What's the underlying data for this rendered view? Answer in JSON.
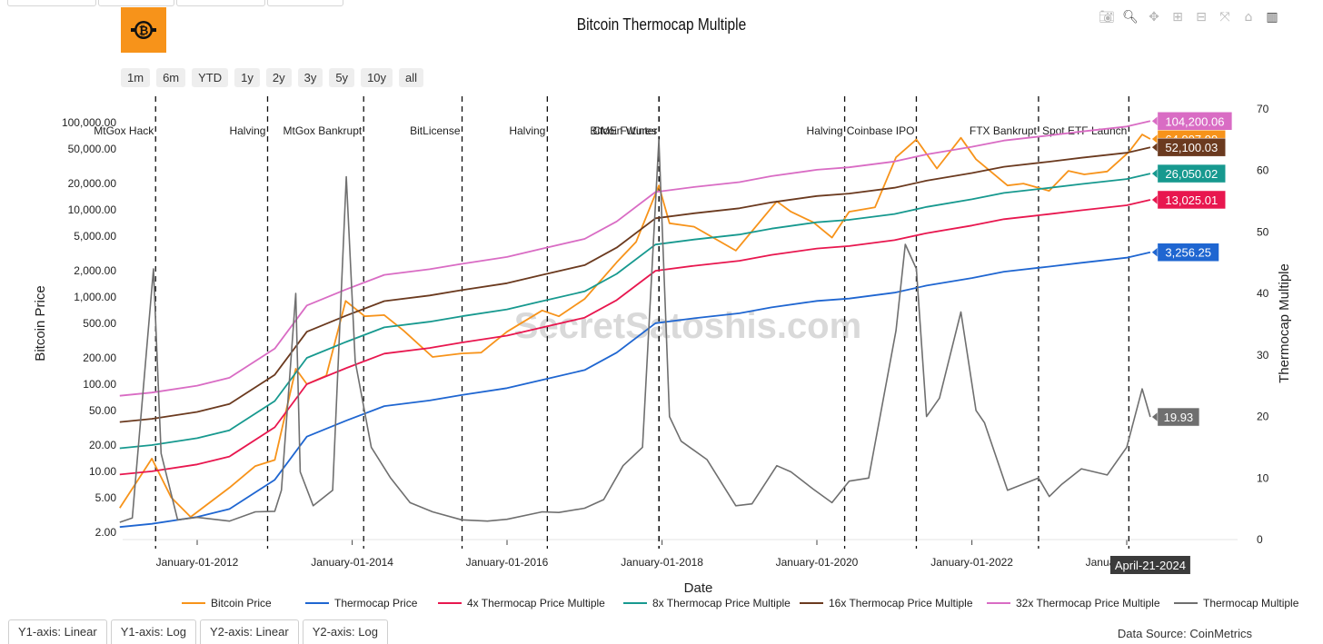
{
  "title": "Bitcoin Thermocap Multiple",
  "range_buttons": [
    "1m",
    "6m",
    "YTD",
    "1y",
    "2y",
    "3y",
    "5y",
    "10y",
    "all"
  ],
  "bottom_buttons": [
    "Y1-axis: Linear",
    "Y1-axis: Log",
    "Y2-axis: Linear",
    "Y2-axis: Log"
  ],
  "data_source": "Data Source: CoinMetrics",
  "modebar_icons": [
    "camera-icon",
    "zoom-icon",
    "pan-icon",
    "zoom-in-icon",
    "zoom-out-icon",
    "autoscale-icon",
    "reset-home-icon",
    "chart-logo-icon"
  ],
  "watermark": "SecretSatoshis.com",
  "chart_data": {
    "type": "line",
    "xlabel": "Date",
    "ylabel": "Bitcoin Price",
    "y2label": "Thermocap Multiple",
    "y_scale": "log",
    "y2_scale": "linear",
    "y2lim": [
      0,
      70
    ],
    "x_ticks": [
      "January-01-2012",
      "January-01-2014",
      "January-01-2016",
      "January-01-2018",
      "January-01-2020",
      "January-01-2022",
      "January-01-2024"
    ],
    "y_ticks": [
      "2.00",
      "5.00",
      "10.00",
      "20.00",
      "50.00",
      "100.00",
      "200.00",
      "500.00",
      "1,000.00",
      "2,000.00",
      "5,000.00",
      "10,000.00",
      "20,000.00",
      "50,000.00",
      "100,000.00"
    ],
    "y2_ticks": [
      "0",
      "10",
      "20",
      "30",
      "40",
      "50",
      "60",
      "70"
    ],
    "hover_date": "April-21-2024",
    "events": [
      {
        "label": "MtGox Hack",
        "date": "2011-06-19"
      },
      {
        "label": "Halving",
        "date": "2012-11-28"
      },
      {
        "label": "MtGox Bankrupt",
        "date": "2014-02-24"
      },
      {
        "label": "BitLicense",
        "date": "2015-06-03"
      },
      {
        "label": "Halving",
        "date": "2016-07-09"
      },
      {
        "label": "CME Futures",
        "date": "2017-12-17"
      },
      {
        "label": "Bitcoin Winter",
        "date": "2017-12-18"
      },
      {
        "label": "Halving",
        "date": "2020-05-11"
      },
      {
        "label": "Coinbase IPO",
        "date": "2021-04-14"
      },
      {
        "label": "FTX Bankrupt",
        "date": "2022-11-11"
      },
      {
        "label": "Spot ETF Launch",
        "date": "2024-01-11"
      }
    ],
    "series": [
      {
        "name": "Bitcoin Price",
        "color": "#f7931a",
        "axis": "y",
        "last_label": "64,907.99",
        "x": [
          "2011-01-01",
          "2011-06-01",
          "2011-09-01",
          "2011-12-01",
          "2012-06-01",
          "2012-10-01",
          "2013-01-01",
          "2013-04-10",
          "2013-06-01",
          "2013-09-01",
          "2013-12-01",
          "2014-03-01",
          "2014-06-01",
          "2014-09-01",
          "2015-01-15",
          "2015-06-01",
          "2015-09-01",
          "2016-01-01",
          "2016-06-15",
          "2016-09-01",
          "2017-01-01",
          "2017-06-01",
          "2017-09-01",
          "2017-12-17",
          "2018-02-05",
          "2018-06-01",
          "2018-12-15",
          "2019-06-26",
          "2019-09-01",
          "2019-12-15",
          "2020-03-12",
          "2020-06-01",
          "2020-10-01",
          "2021-01-08",
          "2021-04-14",
          "2021-07-20",
          "2021-11-10",
          "2022-01-20",
          "2022-06-18",
          "2022-09-01",
          "2022-12-31",
          "2023-04-01",
          "2023-06-15",
          "2023-10-01",
          "2024-01-11",
          "2024-03-14",
          "2024-04-21"
        ],
        "y": [
          3.8,
          14,
          5,
          3,
          6.5,
          11.5,
          13.5,
          150,
          100,
          125,
          900,
          600,
          620,
          410,
          205,
          225,
          230,
          400,
          700,
          600,
          950,
          2500,
          4300,
          19000,
          7000,
          6400,
          3400,
          12500,
          9500,
          7200,
          4800,
          9500,
          10700,
          40000,
          64000,
          29800,
          67000,
          38000,
          19000,
          20000,
          16500,
          28000,
          25500,
          27500,
          46000,
          73000,
          64907.99
        ]
      },
      {
        "name": "Thermocap Price",
        "color": "#1f66d1",
        "axis": "y",
        "last_label": "3,256.25",
        "x": [
          "2011-01-01",
          "2011-06-01",
          "2012-01-01",
          "2012-06-01",
          "2013-01-01",
          "2013-06-01",
          "2013-12-01",
          "2014-06-01",
          "2015-01-01",
          "2015-06-01",
          "2016-01-01",
          "2016-06-01",
          "2017-01-01",
          "2017-06-01",
          "2017-12-01",
          "2018-06-01",
          "2019-01-01",
          "2019-06-01",
          "2020-01-01",
          "2020-06-01",
          "2021-01-01",
          "2021-06-01",
          "2022-01-01",
          "2022-06-01",
          "2023-01-01",
          "2023-06-01",
          "2024-01-01",
          "2024-04-21"
        ],
        "y": [
          2.3,
          2.5,
          3.0,
          3.7,
          8,
          25,
          38,
          56,
          65,
          75,
          90,
          110,
          145,
          230,
          500,
          570,
          650,
          760,
          900,
          960,
          1120,
          1350,
          1650,
          1950,
          2230,
          2470,
          2820,
          3256.25
        ]
      },
      {
        "name": "4x Thermocap Price Multiple",
        "color": "#e8174f",
        "axis": "y",
        "last_label": "13,025.01",
        "x": [
          "2011-01-01",
          "2011-06-01",
          "2012-01-01",
          "2012-06-01",
          "2013-01-01",
          "2013-06-01",
          "2013-12-01",
          "2014-06-01",
          "2015-01-01",
          "2015-06-01",
          "2016-01-01",
          "2016-06-01",
          "2017-01-01",
          "2017-06-01",
          "2017-12-01",
          "2018-06-01",
          "2019-01-01",
          "2019-06-01",
          "2020-01-01",
          "2020-06-01",
          "2021-01-01",
          "2021-06-01",
          "2022-01-01",
          "2022-06-01",
          "2023-01-01",
          "2023-06-01",
          "2024-01-01",
          "2024-04-21"
        ],
        "y": [
          9.2,
          10,
          12,
          14.8,
          32,
          100,
          152,
          224,
          260,
          300,
          360,
          440,
          580,
          920,
          2000,
          2280,
          2600,
          3040,
          3600,
          3840,
          4480,
          5400,
          6600,
          7800,
          8920,
          9880,
          11280,
          13025.01
        ]
      },
      {
        "name": "8x Thermocap Price Multiple",
        "color": "#17998f",
        "axis": "y",
        "last_label": "26,050.02",
        "x": [
          "2011-01-01",
          "2011-06-01",
          "2012-01-01",
          "2012-06-01",
          "2013-01-01",
          "2013-06-01",
          "2013-12-01",
          "2014-06-01",
          "2015-01-01",
          "2015-06-01",
          "2016-01-01",
          "2016-06-01",
          "2017-01-01",
          "2017-06-01",
          "2017-12-01",
          "2018-06-01",
          "2019-01-01",
          "2019-06-01",
          "2020-01-01",
          "2020-06-01",
          "2021-01-01",
          "2021-06-01",
          "2022-01-01",
          "2022-06-01",
          "2023-01-01",
          "2023-06-01",
          "2024-01-01",
          "2024-04-21"
        ],
        "y": [
          18.4,
          20,
          24,
          29.6,
          64,
          200,
          304,
          448,
          520,
          600,
          720,
          880,
          1160,
          1840,
          4000,
          4560,
          5200,
          6080,
          7200,
          7680,
          8960,
          10800,
          13200,
          15600,
          17840,
          19760,
          22560,
          26050.02
        ]
      },
      {
        "name": "16x Thermocap Price Multiple",
        "color": "#6b3a1f",
        "axis": "y",
        "last_label": "52,100.03",
        "x": [
          "2011-01-01",
          "2011-06-01",
          "2012-01-01",
          "2012-06-01",
          "2013-01-01",
          "2013-06-01",
          "2013-12-01",
          "2014-06-01",
          "2015-01-01",
          "2015-06-01",
          "2016-01-01",
          "2016-06-01",
          "2017-01-01",
          "2017-06-01",
          "2017-12-01",
          "2018-06-01",
          "2019-01-01",
          "2019-06-01",
          "2020-01-01",
          "2020-06-01",
          "2021-01-01",
          "2021-06-01",
          "2022-01-01",
          "2022-06-01",
          "2023-01-01",
          "2023-06-01",
          "2024-01-01",
          "2024-04-21"
        ],
        "y": [
          36.8,
          40,
          48,
          59.2,
          128,
          400,
          608,
          896,
          1040,
          1200,
          1440,
          1760,
          2320,
          3680,
          8000,
          9120,
          10400,
          12160,
          14400,
          15360,
          17920,
          21600,
          26400,
          31200,
          35680,
          39520,
          45120,
          52100.03
        ]
      },
      {
        "name": "32x Thermocap Price Multiple",
        "color": "#d96cc4",
        "axis": "y",
        "last_label": "104,200.06",
        "x": [
          "2011-01-01",
          "2011-06-01",
          "2012-01-01",
          "2012-06-01",
          "2013-01-01",
          "2013-06-01",
          "2013-12-01",
          "2014-06-01",
          "2015-01-01",
          "2015-06-01",
          "2016-01-01",
          "2016-06-01",
          "2017-01-01",
          "2017-06-01",
          "2017-12-01",
          "2018-06-01",
          "2019-01-01",
          "2019-06-01",
          "2020-01-01",
          "2020-06-01",
          "2021-01-01",
          "2021-06-01",
          "2022-01-01",
          "2022-06-01",
          "2023-01-01",
          "2023-06-01",
          "2024-01-01",
          "2024-04-21"
        ],
        "y": [
          73.6,
          80,
          96,
          118.4,
          256,
          800,
          1216,
          1792,
          2080,
          2400,
          2880,
          3520,
          4640,
          7360,
          16000,
          18240,
          20800,
          24320,
          28800,
          30720,
          35840,
          43200,
          52800,
          62400,
          71360,
          79040,
          90240,
          104200.06
        ]
      },
      {
        "name": "Thermocap Multiple",
        "color": "#6f6f6f",
        "axis": "y2",
        "last_label": "19.93",
        "x": [
          "2011-01-01",
          "2011-03-01",
          "2011-06-09",
          "2011-07-15",
          "2011-10-01",
          "2012-01-01",
          "2012-06-01",
          "2012-10-01",
          "2013-01-01",
          "2013-02-01",
          "2013-04-10",
          "2013-05-01",
          "2013-07-01",
          "2013-10-01",
          "2013-12-04",
          "2014-01-15",
          "2014-04-01",
          "2014-07-01",
          "2014-10-01",
          "2015-01-15",
          "2015-06-01",
          "2015-10-01",
          "2016-01-01",
          "2016-06-15",
          "2016-09-01",
          "2017-01-01",
          "2017-04-01",
          "2017-07-01",
          "2017-10-01",
          "2017-12-17",
          "2018-02-05",
          "2018-04-01",
          "2018-08-01",
          "2018-12-15",
          "2019-03-01",
          "2019-06-26",
          "2019-09-01",
          "2019-12-15",
          "2020-03-12",
          "2020-06-01",
          "2020-09-01",
          "2021-01-08",
          "2021-02-21",
          "2021-04-14",
          "2021-06-01",
          "2021-08-01",
          "2021-11-10",
          "2022-01-20",
          "2022-03-01",
          "2022-06-18",
          "2022-11-11",
          "2023-01-01",
          "2023-03-01",
          "2023-06-01",
          "2023-10-01",
          "2024-01-01",
          "2024-03-14",
          "2024-04-21"
        ],
        "y": [
          2.8,
          3.5,
          44,
          14,
          3.2,
          3.6,
          3,
          4.5,
          4.6,
          8,
          40,
          11,
          5.5,
          8,
          59,
          29,
          15,
          10,
          6,
          4.5,
          3.2,
          3,
          3.3,
          4.5,
          4.4,
          5.1,
          6.5,
          12,
          15,
          65,
          20,
          16,
          13,
          5.5,
          5.8,
          12,
          11,
          8.2,
          6,
          9.5,
          10,
          34,
          48,
          44,
          20,
          23,
          37,
          21,
          19,
          8,
          10,
          7,
          9,
          11.5,
          10.5,
          15,
          24.5,
          19.93
        ]
      }
    ]
  }
}
